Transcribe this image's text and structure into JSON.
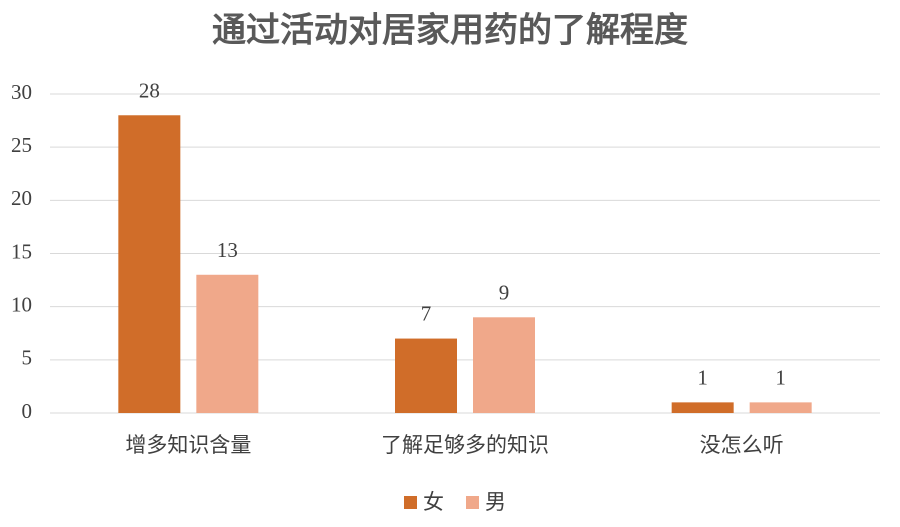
{
  "chart_data": {
    "type": "bar",
    "title": "通过活动对居家用药的了解程度",
    "categories": [
      "增多知识含量",
      "了解足够多的知识",
      "没怎么听"
    ],
    "series": [
      {
        "name": "女",
        "color": "#d06d29",
        "values": [
          28,
          7,
          1
        ]
      },
      {
        "name": "男",
        "color": "#f0a88a",
        "values": [
          13,
          9,
          1
        ]
      }
    ],
    "ylim": [
      0,
      30
    ],
    "yticks": [
      0,
      5,
      10,
      15,
      20,
      25,
      30
    ],
    "grid": true,
    "legend": "bottom"
  }
}
